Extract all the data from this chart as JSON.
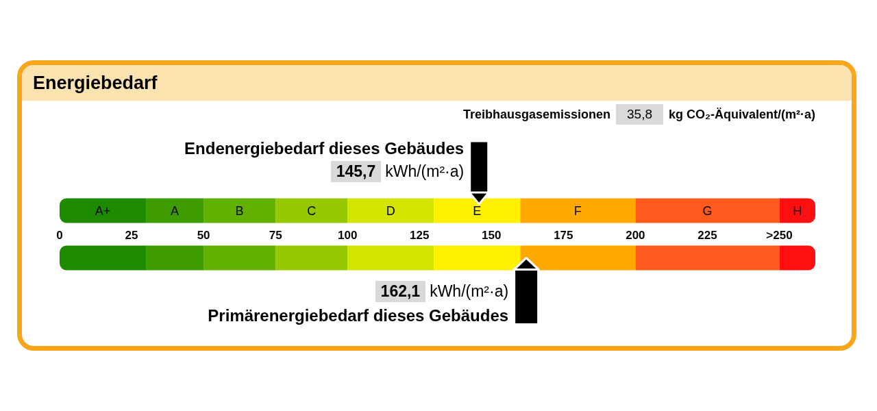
{
  "chart_data": {
    "type": "bar",
    "orientation": "horizontal",
    "stacked": true,
    "title": "Energiebedarf",
    "xlabel": "kWh/(m²·a)",
    "categories": [
      null,
      null
    ],
    "tick_labels": "x",
    "xlim": [
      0,
      262.5
    ],
    "xticks": [
      0,
      25,
      50,
      75,
      100,
      125,
      150,
      175,
      200,
      225,
      {
        "value": 250,
        "label": ">250"
      }
    ],
    "series": [
      {
        "name": "A+",
        "color": "#1e8a00",
        "values": [
          30,
          30
        ]
      },
      {
        "name": "A",
        "color": "#3f9c00",
        "values": [
          20,
          20
        ]
      },
      {
        "name": "B",
        "color": "#62b000",
        "values": [
          25,
          25
        ]
      },
      {
        "name": "C",
        "color": "#96c800",
        "values": [
          25,
          25
        ]
      },
      {
        "name": "D",
        "color": "#d2e400",
        "values": [
          30,
          30
        ]
      },
      {
        "name": "E",
        "color": "#fff000",
        "values": [
          30,
          30
        ]
      },
      {
        "name": "F",
        "color": "#ffa800",
        "values": [
          40,
          40
        ]
      },
      {
        "name": "G",
        "color": "#ff5a1e",
        "values": [
          50,
          50
        ]
      },
      {
        "name": "H",
        "color": "#ff1010",
        "values": [
          12.5,
          12.5
        ]
      }
    ],
    "ref_lines": [
      {
        "axis": "x",
        "value": 145.7,
        "label": "Endenergiebedarf dieses Gebäudes",
        "color": "#000000"
      },
      {
        "axis": "x",
        "value": 162.1,
        "label": "Primärenergiebedarf dieses Gebäudes",
        "color": "#000000"
      }
    ],
    "annotations": [
      "Treibhausgasemissionen",
      "35,8",
      "kg CO₂-Äquivalent/(m²·a)",
      "145,7",
      "162,1"
    ]
  }
}
